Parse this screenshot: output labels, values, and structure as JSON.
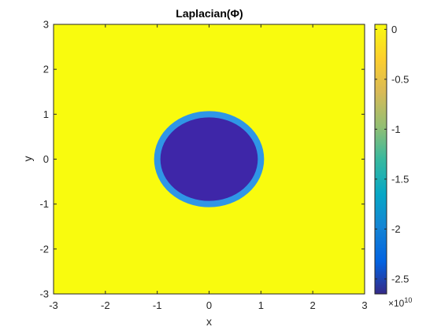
{
  "chart_data": {
    "type": "heatmap",
    "title": "Laplacian(Φ)",
    "xlabel": "x",
    "ylabel": "y",
    "xlim": [
      -3,
      3
    ],
    "ylim": [
      -3,
      3
    ],
    "x_ticks": [
      "-3",
      "-2",
      "-1",
      "0",
      "1",
      "2",
      "3"
    ],
    "y_ticks": [
      "-3",
      "-2",
      "-1",
      "0",
      "1",
      "2",
      "3"
    ],
    "x_tick_values": [
      -3,
      -2,
      -1,
      0,
      1,
      2,
      3
    ],
    "y_tick_values": [
      -3,
      -2,
      -1,
      0,
      1,
      2,
      3
    ],
    "colorbar": {
      "range": [
        -2.65,
        0.05
      ],
      "ticks": [
        "0",
        "-0.5",
        "-1",
        "-1.5",
        "-2",
        "-2.5"
      ],
      "tick_values": [
        0,
        -0.5,
        -1,
        -1.5,
        -2,
        -2.5
      ],
      "multiplier_base": "×10",
      "multiplier_exponent": "10",
      "colormap": "parula"
    },
    "field": {
      "shape": "disk",
      "center": [
        0,
        0
      ],
      "radius": 1.0,
      "inner_value": -2.6,
      "outer_value": 0,
      "rim_width": 0.08
    },
    "grid": false,
    "colors": {
      "background_value_color": "#f9fb0e",
      "min_value_color": "#3e26a8",
      "rim_color": "#2f96e6"
    }
  }
}
